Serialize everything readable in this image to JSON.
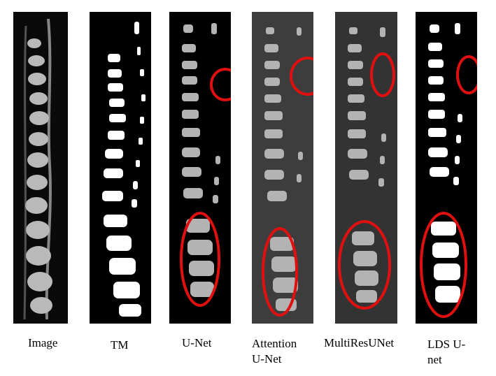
{
  "panels": [
    {
      "label_line1": "Image",
      "label_line2": "",
      "colors": {
        "bg": "#0a0a0a",
        "fg": "#d8d8d8"
      }
    },
    {
      "label_line1": "TM",
      "label_line2": "",
      "colors": {
        "bg": "#000000",
        "fg": "#ffffff"
      }
    },
    {
      "label_line1": "U-Net",
      "label_line2": "",
      "colors": {
        "bg": "#000000",
        "fg": "#b3b3b3"
      }
    },
    {
      "label_line1": "Attention",
      "label_line2": "U-Net",
      "colors": {
        "bg": "#3d3d3d",
        "fg": "#b3b3b3"
      }
    },
    {
      "label_line1": "MultiResUNet",
      "label_line2": "",
      "colors": {
        "bg": "#333333",
        "fg": "#b3b3b3"
      }
    },
    {
      "label_line1": "LDS U-",
      "label_line2": "net",
      "colors": {
        "bg": "#000000",
        "fg": "#ffffff"
      }
    }
  ],
  "highlight_color": "#e01010"
}
